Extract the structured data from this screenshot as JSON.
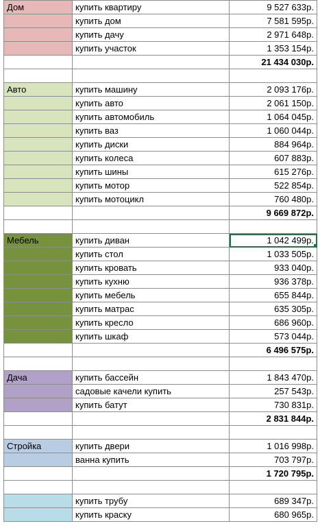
{
  "sheet": {
    "selected_cell": "1 042 499р.",
    "groups": [
      {
        "label": "Дом",
        "color": "#e6b8b7",
        "rows": [
          {
            "item": "купить квартиру",
            "amount": "9 527 633р."
          },
          {
            "item": "купить дом",
            "amount": "7 581 595р."
          },
          {
            "item": "купить дачу",
            "amount": "2 971 648р."
          },
          {
            "item": "купить участок",
            "amount": "1 353 154р."
          }
        ],
        "total": "21 434 030р."
      },
      {
        "label": "Авто",
        "color": "#d8e4bc",
        "rows": [
          {
            "item": "купить машину",
            "amount": "2 093 176р."
          },
          {
            "item": "купить авто",
            "amount": "2 061 150р."
          },
          {
            "item": "купить автомобиль",
            "amount": "1 064 045р."
          },
          {
            "item": "купить ваз",
            "amount": "1 060 044р."
          },
          {
            "item": "купить диски",
            "amount": "884 964р."
          },
          {
            "item": "купить колеса",
            "amount": "607 883р."
          },
          {
            "item": "купить шины",
            "amount": "615 276р."
          },
          {
            "item": "купить мотор",
            "amount": "522 854р."
          },
          {
            "item": "купить мотоцикл",
            "amount": "760 480р."
          }
        ],
        "total": "9 669 872р."
      },
      {
        "label": "Мебель",
        "color": "#76923c",
        "rows": [
          {
            "item": "купить диван",
            "amount": "1 042 499р."
          },
          {
            "item": "купить стол",
            "amount": "1 033 505р."
          },
          {
            "item": "купить кровать",
            "amount": "933 040р."
          },
          {
            "item": "купить кухню",
            "amount": "936 378р."
          },
          {
            "item": "купить мебель",
            "amount": "655 844р."
          },
          {
            "item": "купить матрас",
            "amount": "635 305р."
          },
          {
            "item": "купить кресло",
            "amount": "686 960р."
          },
          {
            "item": "купить шкаф",
            "amount": "573 044р."
          }
        ],
        "total": "6 496 575р."
      },
      {
        "label": "Дача",
        "color": "#b1a0c7",
        "rows": [
          {
            "item": "купить бассейн",
            "amount": "1 843 470р."
          },
          {
            "item": "садовые качели купить",
            "amount": "257 543р."
          },
          {
            "item": "купить батут",
            "amount": "730 831р."
          }
        ],
        "total": "2 831 844р."
      },
      {
        "label": "Стройка",
        "color": "#b8cce4",
        "rows": [
          {
            "item": "купить двери",
            "amount": "1 016 998р."
          },
          {
            "item": "ванна  купить",
            "amount": "703 797р."
          }
        ],
        "total": "1 720 795р."
      },
      {
        "label": "",
        "color": "#b7dee8",
        "rows": [
          {
            "item": "купить трубу",
            "amount": "689 347р."
          },
          {
            "item": "купить краску",
            "amount": "680 965р."
          }
        ],
        "total": null
      }
    ]
  }
}
